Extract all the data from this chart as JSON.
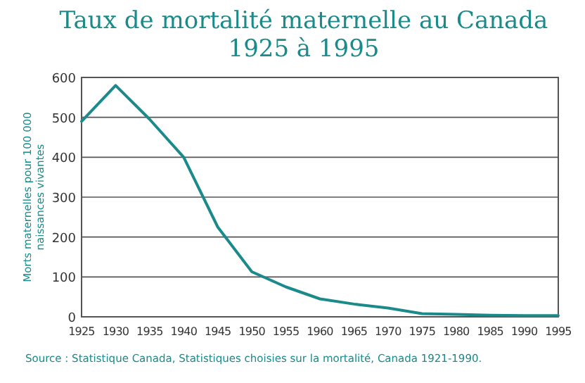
{
  "chart_data": {
    "type": "line",
    "title": "Taux de mortalité maternelle au Canada\n1925 à 1995",
    "ylabel": "Morts maternelles pour 100 000\nnaissances vivantes",
    "x": [
      1925,
      1930,
      1935,
      1940,
      1945,
      1950,
      1955,
      1960,
      1965,
      1970,
      1975,
      1980,
      1985,
      1990,
      1995
    ],
    "series": [
      {
        "color": "#1a8a8a",
        "values": [
          490,
          580,
          495,
          400,
          225,
          113,
          75,
          45,
          32,
          22,
          8,
          6,
          4,
          3,
          3
        ]
      }
    ],
    "xlim": [
      1925,
      1995
    ],
    "xticks": [
      1925,
      1930,
      1935,
      1940,
      1945,
      1950,
      1955,
      1960,
      1965,
      1970,
      1975,
      1980,
      1985,
      1990,
      1995
    ],
    "ylim": [
      0,
      600
    ],
    "yticks": [
      0,
      100,
      200,
      300,
      400,
      500,
      600
    ],
    "grid": "y",
    "marker": "none",
    "line_style": "solid",
    "annotations": [
      "Source : Statistique Canada, Statistiques choisies sur la mortalité, Canada 1921-1990."
    ]
  }
}
